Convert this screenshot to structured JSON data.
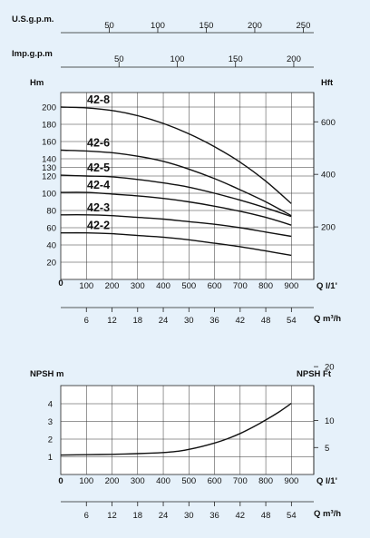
{
  "chart_data": [
    {
      "type": "line",
      "title": "",
      "xlabel": "Q l/1'",
      "ylabel": "Hm",
      "y2label": "Hft",
      "xlim": [
        0,
        1000
      ],
      "ylim": [
        0,
        230
      ],
      "x_ticks": [
        100,
        200,
        300,
        400,
        500,
        600,
        700,
        800,
        900
      ],
      "y_ticks": [
        20,
        40,
        60,
        80,
        100,
        120,
        130,
        140,
        160,
        180,
        200
      ],
      "y2_ticks": [
        200,
        400,
        600
      ],
      "grid": true,
      "origin_label": "0",
      "secondary_axes": {
        "usgpm": {
          "label": "U.S.g.p.m.",
          "ticks": [
            50,
            100,
            150,
            200,
            250
          ]
        },
        "impgpm": {
          "label": "Imp.g.p.m",
          "ticks": [
            50,
            100,
            150,
            200
          ]
        },
        "m3h": {
          "label": "Q m³/h",
          "ticks": [
            6,
            12,
            18,
            24,
            30,
            36,
            42,
            48,
            54
          ]
        }
      },
      "series": [
        {
          "name": "42-8",
          "x": [
            0,
            100,
            200,
            300,
            400,
            500,
            600,
            700,
            800,
            900
          ],
          "values": [
            200,
            199,
            196,
            190,
            181,
            169,
            154,
            136,
            114,
            88
          ]
        },
        {
          "name": "42-6",
          "x": [
            0,
            100,
            200,
            300,
            400,
            500,
            600,
            700,
            800,
            900
          ],
          "values": [
            150,
            149,
            147,
            143,
            137,
            128,
            117,
            104,
            90,
            74
          ]
        },
        {
          "name": "42-5",
          "x": [
            0,
            100,
            200,
            300,
            400,
            500,
            600,
            700,
            800,
            900
          ],
          "values": [
            121,
            120,
            119,
            116,
            112,
            107,
            100,
            92,
            83,
            73
          ]
        },
        {
          "name": "42-4",
          "x": [
            0,
            100,
            200,
            300,
            400,
            500,
            600,
            700,
            800,
            900
          ],
          "values": [
            101,
            101,
            99,
            97,
            94,
            90,
            85,
            79,
            72,
            63
          ]
        },
        {
          "name": "42-3",
          "x": [
            0,
            100,
            200,
            300,
            400,
            500,
            600,
            700,
            800,
            900
          ],
          "values": [
            75,
            75,
            74,
            72,
            70,
            67,
            64,
            60,
            55,
            50
          ]
        },
        {
          "name": "42-2",
          "x": [
            0,
            100,
            200,
            300,
            400,
            500,
            600,
            700,
            800,
            900
          ],
          "values": [
            54,
            54,
            53,
            51,
            49,
            46,
            42,
            38,
            33,
            28
          ]
        }
      ]
    },
    {
      "type": "line",
      "title": "",
      "xlabel": "Q l/1'",
      "ylabel": "NPSH m",
      "y2label": "NPSH Ft",
      "xlim": [
        0,
        1000
      ],
      "ylim": [
        0,
        5
      ],
      "x_ticks": [
        100,
        200,
        300,
        400,
        500,
        600,
        700,
        800,
        900
      ],
      "y_ticks": [
        1,
        2,
        3,
        4
      ],
      "y2_ticks": [
        5,
        10,
        20
      ],
      "grid": true,
      "origin_label": "0",
      "secondary_axes": {
        "m3h": {
          "label": "Q m³/h",
          "ticks": [
            6,
            12,
            18,
            24,
            30,
            36,
            42,
            48,
            54
          ]
        }
      },
      "series": [
        {
          "name": "",
          "x": [
            0,
            100,
            200,
            300,
            400,
            450,
            500,
            550,
            600,
            650,
            700,
            750,
            800,
            850,
            900
          ],
          "values": [
            1.1,
            1.12,
            1.14,
            1.18,
            1.24,
            1.3,
            1.42,
            1.58,
            1.78,
            2.02,
            2.32,
            2.68,
            3.08,
            3.52,
            4.02
          ]
        }
      ]
    }
  ]
}
